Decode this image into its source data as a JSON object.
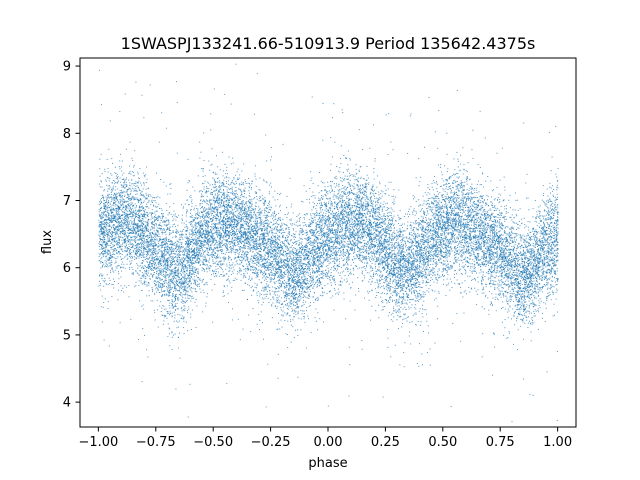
{
  "chart_data": {
    "type": "scatter",
    "title": "1SWASPJ133241.66-510913.9 Period 135642.4375s",
    "xlabel": "phase",
    "ylabel": "flux",
    "xlim": [
      -1.08,
      1.08
    ],
    "ylim": [
      3.63,
      9.12
    ],
    "x_ticks": [
      -1.0,
      -0.75,
      -0.5,
      -0.25,
      0.0,
      0.25,
      0.5,
      0.75,
      1.0
    ],
    "x_tick_labels": [
      "−1.00",
      "−0.75",
      "−0.50",
      "−0.25",
      "0.00",
      "0.25",
      "0.50",
      "0.75",
      "1.00"
    ],
    "y_ticks": [
      4,
      5,
      6,
      7,
      8,
      9
    ],
    "y_tick_labels": [
      "4",
      "5",
      "6",
      "7",
      "8",
      "9"
    ],
    "grid": false,
    "marker_color": "#1f77b4",
    "series": [
      {
        "phase_range": [
          -1.0,
          1.0
        ],
        "light_curve_profile": {
          "phase": [
            0.0,
            0.05,
            0.1,
            0.15,
            0.2,
            0.25,
            0.3,
            0.35,
            0.4,
            0.45,
            0.5,
            0.55,
            0.6,
            0.65,
            0.7,
            0.75,
            0.8,
            0.85,
            0.9,
            0.95,
            1.0
          ],
          "mean_flux": [
            6.45,
            6.62,
            6.7,
            6.65,
            6.52,
            6.3,
            6.05,
            5.95,
            6.2,
            6.45,
            6.6,
            6.68,
            6.62,
            6.5,
            6.38,
            6.25,
            6.05,
            5.85,
            6.05,
            6.3,
            6.45
          ],
          "scatter_sd": 0.38
        },
        "point_count": 18000
      }
    ]
  }
}
